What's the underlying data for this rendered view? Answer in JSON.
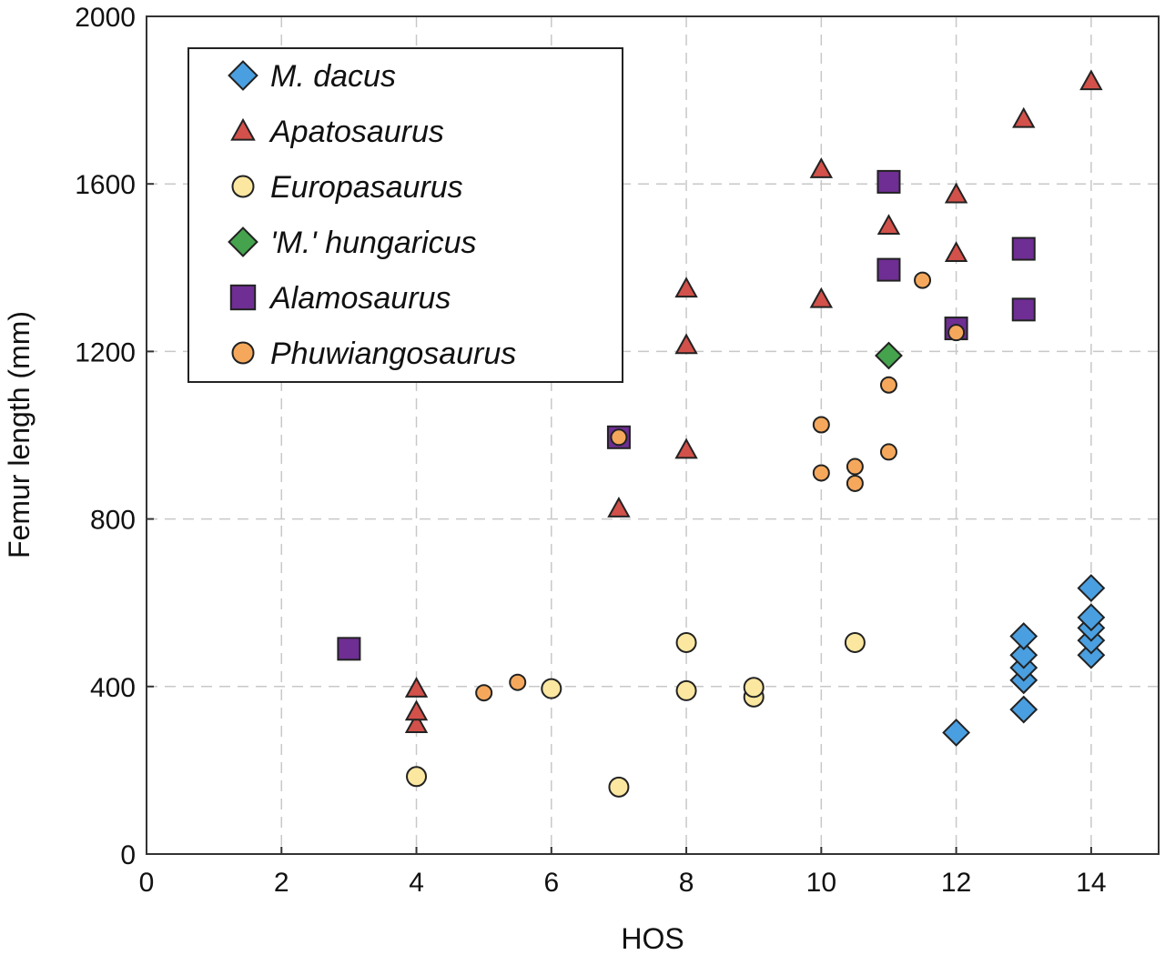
{
  "chart_data": {
    "type": "scatter",
    "xlabel": "HOS",
    "ylabel": "Femur length (mm)",
    "xlim": [
      0,
      15
    ],
    "ylim": [
      0,
      2000
    ],
    "xticks": [
      0,
      2,
      4,
      6,
      8,
      10,
      12,
      14
    ],
    "yticks": [
      0,
      400,
      800,
      1200,
      1600,
      2000
    ],
    "grid": true,
    "legend_position": "top-left",
    "series": [
      {
        "name": "M. dacus",
        "marker": "diamond",
        "color": "#4a9fe0",
        "points": [
          {
            "x": 12,
            "y": 290
          },
          {
            "x": 13,
            "y": 345
          },
          {
            "x": 13,
            "y": 415
          },
          {
            "x": 13,
            "y": 445
          },
          {
            "x": 13,
            "y": 475
          },
          {
            "x": 13,
            "y": 520
          },
          {
            "x": 14,
            "y": 475
          },
          {
            "x": 14,
            "y": 510
          },
          {
            "x": 14,
            "y": 540
          },
          {
            "x": 14,
            "y": 565
          },
          {
            "x": 14,
            "y": 635
          }
        ]
      },
      {
        "name": "Apatosaurus",
        "marker": "triangle",
        "color": "#d2514a",
        "points": [
          {
            "x": 4,
            "y": 310
          },
          {
            "x": 4,
            "y": 340
          },
          {
            "x": 4,
            "y": 395
          },
          {
            "x": 7,
            "y": 825
          },
          {
            "x": 8,
            "y": 965
          },
          {
            "x": 8,
            "y": 1215
          },
          {
            "x": 8,
            "y": 1350
          },
          {
            "x": 10,
            "y": 1325
          },
          {
            "x": 10,
            "y": 1635
          },
          {
            "x": 11,
            "y": 1500
          },
          {
            "x": 12,
            "y": 1435
          },
          {
            "x": 12,
            "y": 1575
          },
          {
            "x": 13,
            "y": 1755
          },
          {
            "x": 14,
            "y": 1845
          }
        ]
      },
      {
        "name": "Europasaurus",
        "marker": "circle",
        "color": "#fbe7a0",
        "points": [
          {
            "x": 4,
            "y": 185
          },
          {
            "x": 7,
            "y": 160
          },
          {
            "x": 6,
            "y": 395
          },
          {
            "x": 8,
            "y": 390
          },
          {
            "x": 8,
            "y": 505
          },
          {
            "x": 9,
            "y": 375
          },
          {
            "x": 9,
            "y": 398
          },
          {
            "x": 10.5,
            "y": 505
          }
        ]
      },
      {
        "name": "'M.' hungaricus",
        "marker": "diamond",
        "color": "#45a24d",
        "points": [
          {
            "x": 11,
            "y": 1190
          }
        ]
      },
      {
        "name": "Alamosaurus",
        "marker": "square",
        "color": "#6e2e93",
        "points": [
          {
            "x": 3,
            "y": 490
          },
          {
            "x": 7,
            "y": 995
          },
          {
            "x": 11,
            "y": 1395
          },
          {
            "x": 11,
            "y": 1605
          },
          {
            "x": 12,
            "y": 1255
          },
          {
            "x": 13,
            "y": 1300
          },
          {
            "x": 13,
            "y": 1445
          }
        ]
      },
      {
        "name": "Phuwiangosaurus",
        "marker": "circle",
        "color": "#f5a85c",
        "points": [
          {
            "x": 5,
            "y": 385
          },
          {
            "x": 5.5,
            "y": 410
          },
          {
            "x": 7,
            "y": 995
          },
          {
            "x": 10,
            "y": 910
          },
          {
            "x": 10,
            "y": 1025
          },
          {
            "x": 10.5,
            "y": 885
          },
          {
            "x": 10.5,
            "y": 925
          },
          {
            "x": 11,
            "y": 960
          },
          {
            "x": 11,
            "y": 1120
          },
          {
            "x": 11.5,
            "y": 1370
          },
          {
            "x": 12,
            "y": 1245
          }
        ]
      }
    ]
  }
}
